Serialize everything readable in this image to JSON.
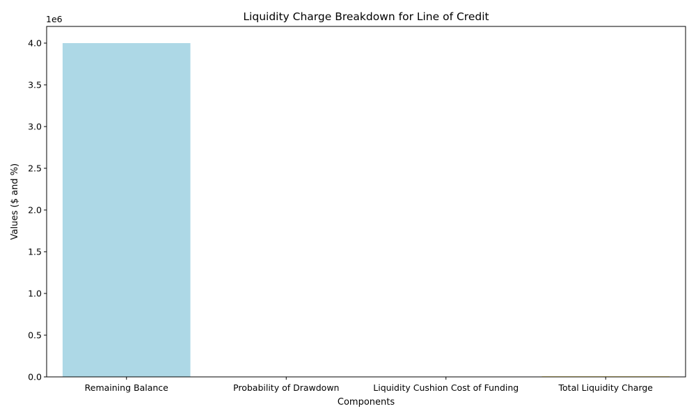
{
  "chart_data": {
    "type": "bar",
    "title": "Liquidity Charge Breakdown for Line of Credit",
    "xlabel": "Components",
    "ylabel": "Values ($ and %)",
    "y_offset_label": "1e6",
    "categories": [
      "Remaining Balance",
      "Probability of Drawdown",
      "Liquidity Cushion Cost of Funding",
      "Total Liquidity Charge"
    ],
    "values": [
      4000000,
      0.3,
      0.05,
      6000
    ],
    "colors": [
      "#add8e6",
      "#90ee90",
      "#f08080",
      "#ffd700"
    ],
    "ylim": [
      0,
      4200000
    ],
    "yticks": [
      0,
      500000,
      1000000,
      1500000,
      2000000,
      2500000,
      3000000,
      3500000,
      4000000
    ],
    "ytick_labels": [
      "0.0",
      "0.5",
      "1.0",
      "1.5",
      "2.0",
      "2.5",
      "3.0",
      "3.5",
      "4.0"
    ],
    "grid": false,
    "legend": "none"
  }
}
